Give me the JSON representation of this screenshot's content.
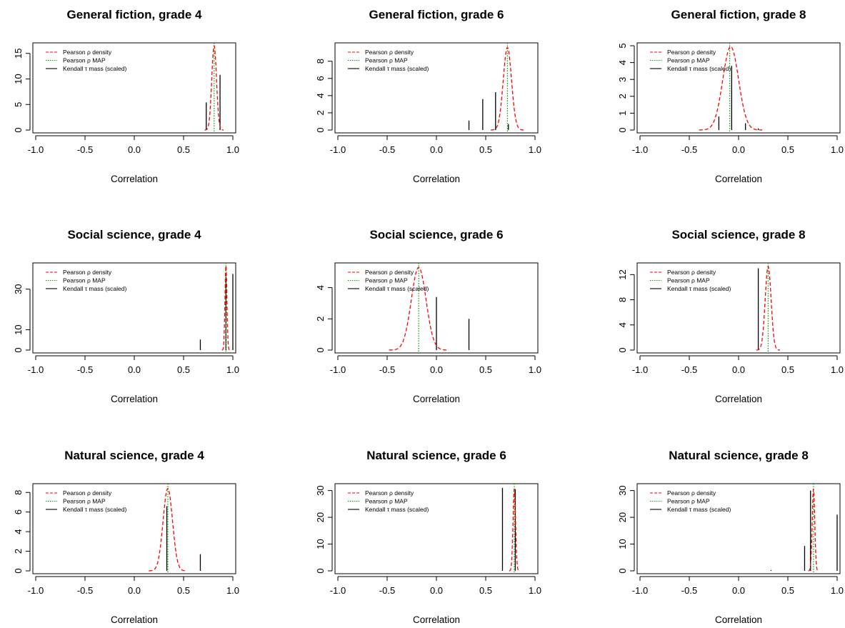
{
  "chart_data": [
    {
      "type": "line",
      "title": "General fiction, grade 4",
      "xlabel": "Correlation",
      "ylabel": "",
      "xlim": [
        -1.0,
        1.0
      ],
      "xticks": [
        "-1.0",
        "-0.5",
        "0.0",
        "0.5",
        "1.0"
      ],
      "ylim": [
        0,
        16.5
      ],
      "yticks": [
        "0",
        "5",
        "10",
        "15"
      ],
      "legend_position": "top-left",
      "legend": [
        "Pearson ρ density",
        "Pearson ρ MAP",
        "Kendall τ mass (scaled)"
      ],
      "density": {
        "series_name": "Pearson ρ density",
        "mu": 0.81,
        "peak": 16.5,
        "sd": 0.024,
        "color": "#ff0000"
      },
      "map": {
        "series_name": "Pearson ρ MAP",
        "x": 0.81,
        "color": "#00a000"
      },
      "kendall": {
        "series_name": "Kendall τ mass (scaled)",
        "x": [
          0.73,
          0.87
        ],
        "y": [
          5.4,
          10.8
        ],
        "color": "#000000"
      }
    },
    {
      "type": "line",
      "title": "General fiction, grade 6",
      "xlabel": "Correlation",
      "ylabel": "",
      "xlim": [
        -1.0,
        1.0
      ],
      "xticks": [
        "-1.0",
        "-0.5",
        "0.0",
        "0.5",
        "1.0"
      ],
      "ylim": [
        0,
        9.8
      ],
      "yticks": [
        "0",
        "2",
        "4",
        "6",
        "8"
      ],
      "legend_position": "top-left",
      "legend": [
        "Pearson ρ density",
        "Pearson ρ MAP",
        "Kendall τ mass (scaled)"
      ],
      "density": {
        "series_name": "Pearson ρ density",
        "mu": 0.72,
        "peak": 9.6,
        "sd": 0.042,
        "color": "#ff0000"
      },
      "map": {
        "series_name": "Pearson ρ MAP",
        "x": 0.72,
        "color": "#00a000"
      },
      "kendall": {
        "series_name": "Kendall τ mass (scaled)",
        "x": [
          0.33,
          0.47,
          0.6,
          0.73
        ],
        "y": [
          1.1,
          3.6,
          4.4,
          0.7
        ],
        "color": "#000000"
      }
    },
    {
      "type": "line",
      "title": "General fiction, grade 8",
      "xlabel": "Correlation",
      "ylabel": "",
      "xlim": [
        -1.0,
        1.0
      ],
      "xticks": [
        "-1.0",
        "-0.5",
        "0.0",
        "0.5",
        "1.0"
      ],
      "ylim": [
        0,
        5.0
      ],
      "yticks": [
        "0",
        "1",
        "2",
        "3",
        "4",
        "5"
      ],
      "legend_position": "top-left",
      "legend": [
        "Pearson ρ density",
        "Pearson ρ MAP",
        "Kendall τ mass (scaled)"
      ],
      "density": {
        "series_name": "Pearson ρ density",
        "mu": -0.08,
        "peak": 4.95,
        "sd": 0.08,
        "color": "#ff0000"
      },
      "map": {
        "series_name": "Pearson ρ MAP",
        "x": -0.09,
        "color": "#00a000"
      },
      "kendall": {
        "series_name": "Kendall τ mass (scaled)",
        "x": [
          -0.2,
          -0.07,
          0.07,
          0.2
        ],
        "y": [
          0.8,
          3.8,
          0.4,
          0.1
        ],
        "color": "#000000"
      }
    },
    {
      "type": "line",
      "title": "Social science, grade 4",
      "xlabel": "Correlation",
      "ylabel": "",
      "xlim": [
        -1.0,
        1.0
      ],
      "xticks": [
        "-1.0",
        "-0.5",
        "0.0",
        "0.5",
        "1.0"
      ],
      "ylim": [
        0,
        41.5
      ],
      "yticks": [
        "0",
        "10",
        "30"
      ],
      "legend_position": "top-left",
      "legend": [
        "Pearson ρ density",
        "Pearson ρ MAP",
        "Kendall τ mass (scaled)"
      ],
      "density": {
        "series_name": "Pearson ρ density",
        "mu": 0.93,
        "peak": 41.5,
        "sd": 0.01,
        "color": "#ff0000"
      },
      "map": {
        "series_name": "Pearson ρ MAP",
        "x": 0.93,
        "color": "#00a000"
      },
      "kendall": {
        "series_name": "Kendall τ mass (scaled)",
        "x": [
          0.67,
          0.93,
          1.0
        ],
        "y": [
          5.2,
          36.0,
          37.5
        ],
        "color": "#000000"
      }
    },
    {
      "type": "line",
      "title": "Social science, grade 6",
      "xlabel": "Correlation",
      "ylabel": "",
      "xlim": [
        -1.0,
        1.0
      ],
      "xticks": [
        "-1.0",
        "-0.5",
        "0.0",
        "0.5",
        "1.0"
      ],
      "ylim": [
        0,
        5.4
      ],
      "yticks": [
        "0",
        "2",
        "4"
      ],
      "legend_position": "top-left",
      "legend": [
        "Pearson ρ density",
        "Pearson ρ MAP",
        "Kendall τ mass (scaled)"
      ],
      "density": {
        "series_name": "Pearson ρ density",
        "mu": -0.18,
        "peak": 5.3,
        "sd": 0.075,
        "color": "#ff0000"
      },
      "map": {
        "series_name": "Pearson ρ MAP",
        "x": -0.18,
        "color": "#00a000"
      },
      "kendall": {
        "series_name": "Kendall τ mass (scaled)",
        "x": [
          0.0,
          0.33
        ],
        "y": [
          3.4,
          2.0
        ],
        "color": "#000000"
      }
    },
    {
      "type": "line",
      "title": "Social science, grade 8",
      "xlabel": "Correlation",
      "ylabel": "",
      "xlim": [
        -1.0,
        1.0
      ],
      "xticks": [
        "-1.0",
        "-0.5",
        "0.0",
        "0.5",
        "1.0"
      ],
      "ylim": [
        0,
        13.4
      ],
      "yticks": [
        "0",
        "4",
        "8",
        "12"
      ],
      "legend_position": "top-left",
      "legend": [
        "Pearson ρ density",
        "Pearson ρ MAP",
        "Kendall τ mass (scaled)"
      ],
      "density": {
        "series_name": "Pearson ρ density",
        "mu": 0.3,
        "peak": 13.3,
        "sd": 0.03,
        "color": "#ff0000"
      },
      "map": {
        "series_name": "Pearson ρ MAP",
        "x": 0.3,
        "color": "#00a000"
      },
      "kendall": {
        "series_name": "Kendall τ mass (scaled)",
        "x": [
          0.2
        ],
        "y": [
          13.0
        ],
        "color": "#000000"
      }
    },
    {
      "type": "line",
      "title": "Natural science, grade 4",
      "xlabel": "Correlation",
      "ylabel": "",
      "xlim": [
        -1.0,
        1.0
      ],
      "xticks": [
        "-1.0",
        "-0.5",
        "0.0",
        "0.5",
        "1.0"
      ],
      "ylim": [
        0,
        8.6
      ],
      "yticks": [
        "0",
        "2",
        "4",
        "6",
        "8"
      ],
      "legend_position": "top-left",
      "legend": [
        "Pearson ρ density",
        "Pearson ρ MAP",
        "Kendall τ mass (scaled)"
      ],
      "density": {
        "series_name": "Pearson ρ density",
        "mu": 0.34,
        "peak": 8.4,
        "sd": 0.048,
        "color": "#ff0000"
      },
      "map": {
        "series_name": "Pearson ρ MAP",
        "x": 0.34,
        "color": "#00a000"
      },
      "kendall": {
        "series_name": "Kendall τ mass (scaled)",
        "x": [
          0.33,
          0.67
        ],
        "y": [
          6.6,
          1.7
        ],
        "color": "#000000"
      }
    },
    {
      "type": "line",
      "title": "Natural science, grade 6",
      "xlabel": "Correlation",
      "ylabel": "",
      "xlim": [
        -1.0,
        1.0
      ],
      "xticks": [
        "-1.0",
        "-0.5",
        "0.0",
        "0.5",
        "1.0"
      ],
      "ylim": [
        0,
        31.5
      ],
      "yticks": [
        "0",
        "10",
        "20",
        "30"
      ],
      "legend_position": "top-left",
      "legend": [
        "Pearson ρ density",
        "Pearson ρ MAP",
        "Kendall τ mass (scaled)"
      ],
      "density": {
        "series_name": "Pearson ρ density",
        "mu": 0.79,
        "peak": 30.5,
        "sd": 0.013,
        "color": "#ff0000"
      },
      "map": {
        "series_name": "Pearson ρ MAP",
        "x": 0.79,
        "color": "#00a000"
      },
      "kendall": {
        "series_name": "Kendall τ mass (scaled)",
        "x": [
          0.67,
          0.8
        ],
        "y": [
          31.0,
          30.5
        ],
        "color": "#000000"
      }
    },
    {
      "type": "line",
      "title": "Natural science, grade 8",
      "xlabel": "Correlation",
      "ylabel": "",
      "xlim": [
        -1.0,
        1.0
      ],
      "xticks": [
        "-1.0",
        "-0.5",
        "0.0",
        "0.5",
        "1.0"
      ],
      "ylim": [
        0,
        31.5
      ],
      "yticks": [
        "0",
        "10",
        "20",
        "30"
      ],
      "legend_position": "top-left",
      "legend": [
        "Pearson ρ density",
        "Pearson ρ MAP",
        "Kendall τ mass (scaled)"
      ],
      "density": {
        "series_name": "Pearson ρ density",
        "mu": 0.76,
        "peak": 30.5,
        "sd": 0.013,
        "color": "#ff0000"
      },
      "map": {
        "series_name": "Pearson ρ MAP",
        "x": 0.76,
        "color": "#00a000"
      },
      "kendall": {
        "series_name": "Kendall τ mass (scaled)",
        "x": [
          0.33,
          0.67,
          0.73,
          1.0
        ],
        "y": [
          0.3,
          9.3,
          30.0,
          21.0
        ],
        "color": "#000000"
      }
    }
  ]
}
